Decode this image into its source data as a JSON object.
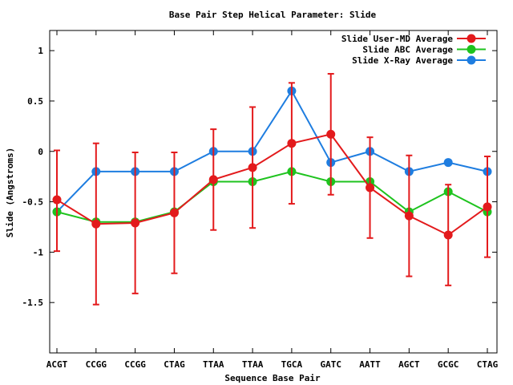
{
  "chart_data": {
    "type": "line",
    "title": "Base Pair Step Helical Parameter: Slide",
    "xlabel": "Sequence Base Pair",
    "ylabel": "Slide (Angstroms)",
    "categories": [
      "ACGT",
      "CCGG",
      "CCGG",
      "CTAG",
      "TTAA",
      "TTAA",
      "TGCA",
      "GATC",
      "AATT",
      "AGCT",
      "GCGC",
      "CTAG"
    ],
    "ylim": [
      -2.0,
      1.2
    ],
    "yticks": [
      {
        "value": 1,
        "label": "1"
      },
      {
        "value": 0.5,
        "label": "0.5"
      },
      {
        "value": 0,
        "label": "0"
      },
      {
        "value": -0.5,
        "label": "-0.5"
      },
      {
        "value": -1,
        "label": "-1"
      },
      {
        "value": -1.5,
        "label": "-1.5"
      }
    ],
    "grid": false,
    "legend_position": "top-right",
    "series": [
      {
        "name": "Slide User-MD Average",
        "color": "#e31a1c",
        "values": [
          -0.48,
          -0.72,
          -0.71,
          -0.61,
          -0.28,
          -0.16,
          0.08,
          0.17,
          -0.36,
          -0.64,
          -0.83,
          -0.55
        ],
        "error_low": [
          -0.99,
          -1.52,
          -1.41,
          -1.21,
          -0.78,
          -0.76,
          -0.52,
          -0.43,
          -0.86,
          -1.24,
          -1.33,
          -1.05
        ],
        "error_high": [
          0.01,
          0.08,
          -0.01,
          -0.01,
          0.22,
          0.44,
          0.68,
          0.77,
          0.14,
          -0.04,
          -0.33,
          -0.05
        ]
      },
      {
        "name": "Slide ABC Average",
        "color": "#1ec31e",
        "values": [
          -0.6,
          -0.7,
          -0.7,
          -0.6,
          -0.3,
          -0.3,
          -0.2,
          -0.3,
          -0.3,
          -0.6,
          -0.4,
          -0.6
        ]
      },
      {
        "name": "Slide X-Ray Average",
        "color": "#1e7de0",
        "values": [
          -0.6,
          -0.2,
          -0.2,
          -0.2,
          0.0,
          0.0,
          0.6,
          -0.11,
          0.0,
          -0.2,
          -0.11,
          -0.2
        ]
      }
    ]
  }
}
